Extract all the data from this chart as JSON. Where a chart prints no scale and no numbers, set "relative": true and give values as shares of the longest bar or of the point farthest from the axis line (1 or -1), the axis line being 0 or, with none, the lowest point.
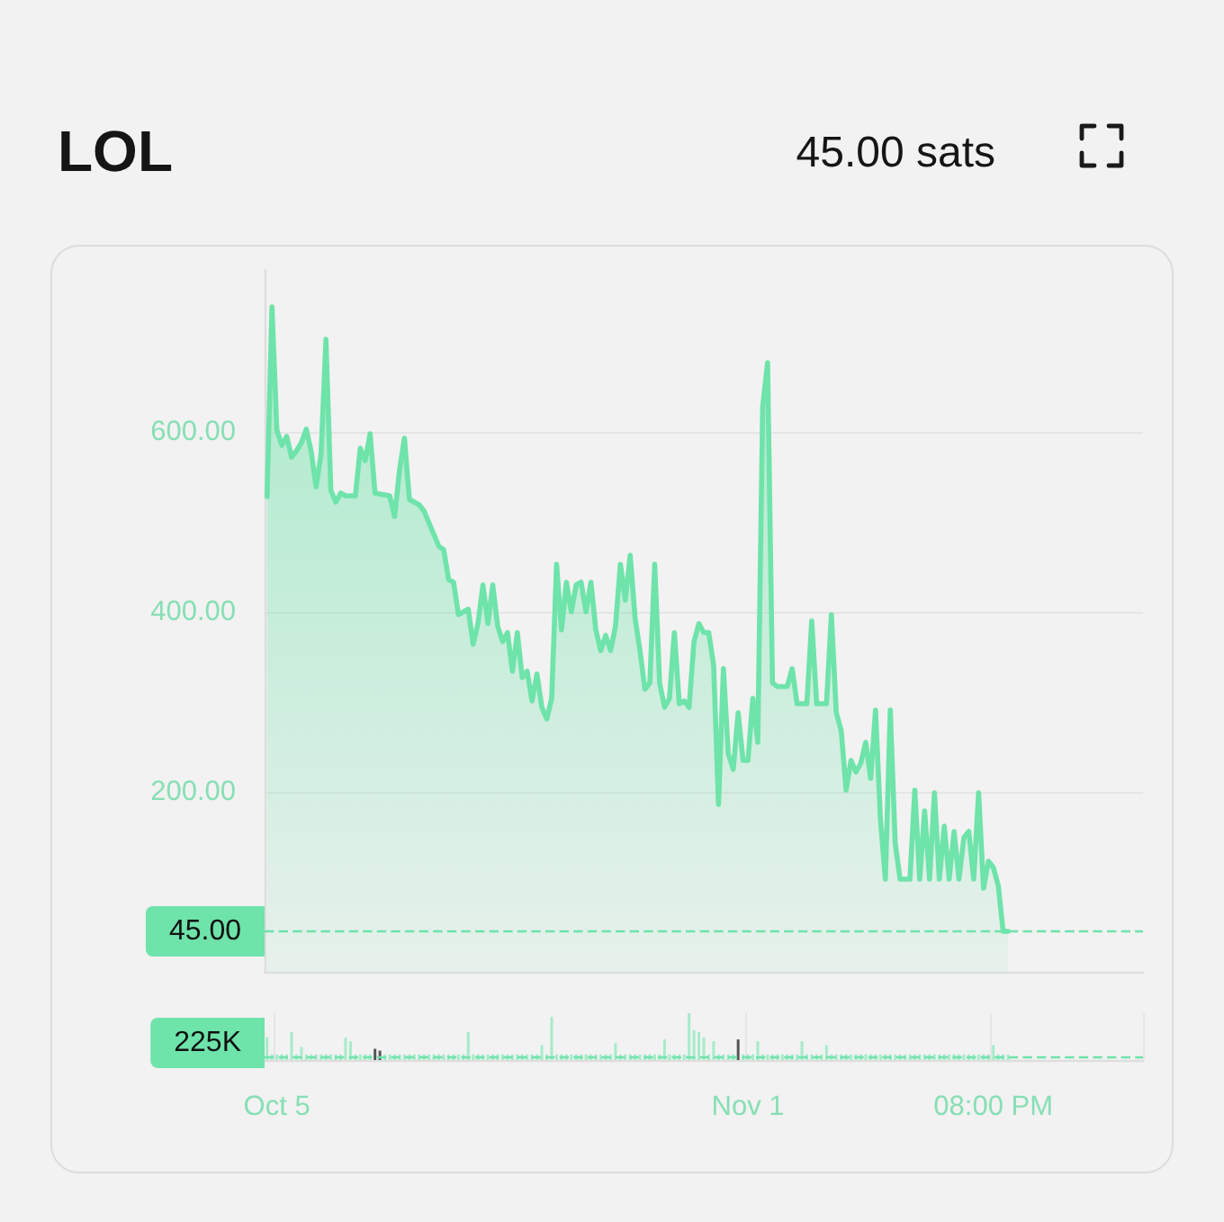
{
  "chart_data": [
    {
      "type": "area",
      "title": "LOL",
      "subtitle": "45.00 sats",
      "color": "#6ee3aa",
      "categories": [
        null,
        null,
        null,
        null,
        null,
        null,
        null,
        null,
        null,
        null,
        null,
        null,
        null,
        null,
        null,
        null,
        null,
        null,
        null,
        null,
        null,
        null,
        null,
        null,
        null,
        null,
        null,
        null,
        null,
        null,
        null,
        null,
        null,
        null,
        null,
        null,
        null,
        null,
        null,
        null,
        null,
        null,
        null,
        null,
        null,
        null,
        null,
        null,
        null,
        null,
        null,
        null,
        null,
        null,
        null,
        null,
        null,
        null,
        null,
        null,
        null,
        null,
        null,
        null,
        null,
        null,
        null,
        null,
        null,
        null,
        null,
        null,
        null,
        null,
        null,
        null,
        null,
        null,
        null,
        null,
        null,
        null,
        null,
        null,
        null,
        null,
        null,
        null,
        null,
        null,
        null,
        null,
        null,
        null,
        null,
        null,
        null,
        null,
        null,
        null,
        null,
        null,
        null,
        null,
        null,
        null,
        null,
        null,
        null,
        null,
        null,
        null,
        null,
        null,
        null,
        null,
        null,
        null,
        null,
        null,
        null,
        null,
        null,
        null,
        null,
        null,
        null,
        null,
        null,
        null,
        null,
        null,
        null,
        null,
        null,
        null,
        null,
        null,
        null,
        null,
        null,
        null,
        null,
        null,
        null,
        null,
        null,
        null,
        null,
        null,
        null,
        null
      ],
      "values": [
        528,
        739,
        602,
        585,
        595,
        572,
        579,
        588,
        603,
        578,
        539,
        575,
        703,
        535,
        522,
        532,
        529,
        529,
        529,
        582,
        568,
        598,
        532,
        531,
        530,
        529,
        506,
        558,
        593,
        525,
        522,
        519,
        512,
        499,
        486,
        473,
        469,
        436,
        433,
        397,
        400,
        403,
        364,
        388,
        430,
        387,
        430,
        384,
        367,
        377,
        334,
        377,
        327,
        334,
        301,
        331,
        294,
        281,
        304,
        453,
        380,
        433,
        400,
        430,
        433,
        400,
        433,
        380,
        357,
        374,
        357,
        384,
        453,
        413,
        463,
        393,
        357,
        314,
        321,
        453,
        321,
        294,
        304,
        377,
        298,
        301,
        294,
        367,
        387,
        377,
        377,
        341,
        186,
        337,
        242,
        225,
        288,
        235,
        235,
        304,
        255,
        628,
        677,
        321,
        317,
        317,
        317,
        337,
        298,
        298,
        298,
        390,
        298,
        298,
        298,
        397,
        288,
        268,
        202,
        235,
        222,
        232,
        255,
        215,
        291,
        169,
        103,
        291,
        143,
        103,
        103,
        103,
        202,
        103,
        179,
        103,
        199,
        103,
        162,
        103,
        156,
        103,
        149,
        156,
        103,
        199,
        93,
        123,
        116,
        96,
        45,
        45
      ],
      "ylim": [
        0,
        780
      ],
      "yticks": [
        {
          "value": 200,
          "label": "200.00"
        },
        {
          "value": 400,
          "label": "400.00"
        },
        {
          "value": 600,
          "label": "600.00"
        }
      ],
      "tick_labels": "y",
      "grid": "y",
      "ref_lines": [
        {
          "axis": "y",
          "value": 45,
          "label": "45.00",
          "color": "#6ee3aa",
          "line_style": "dashed"
        }
      ]
    },
    {
      "type": "bar",
      "relative": true,
      "color": "#a6ebc9",
      "categories": [
        null,
        null,
        "Oct 5",
        null,
        null,
        null,
        null,
        null,
        null,
        null,
        null,
        null,
        null,
        null,
        null,
        null,
        null,
        null,
        null,
        null,
        null,
        null,
        null,
        null,
        null,
        null,
        null,
        null,
        null,
        null,
        null,
        null,
        null,
        null,
        null,
        null,
        null,
        null,
        null,
        null,
        null,
        null,
        null,
        null,
        null,
        null,
        null,
        null,
        null,
        null,
        null,
        null,
        null,
        null,
        null,
        null,
        null,
        null,
        null,
        null,
        null,
        null,
        null,
        null,
        null,
        null,
        null,
        null,
        null,
        null,
        null,
        null,
        null,
        null,
        null,
        null,
        null,
        null,
        null,
        null,
        null,
        null,
        null,
        null,
        null,
        null,
        null,
        null,
        null,
        null,
        null,
        null,
        null,
        null,
        null,
        null,
        null,
        null,
        "Nov 1",
        null,
        null,
        null,
        null,
        null,
        null,
        null,
        null,
        null,
        null,
        null,
        null,
        null,
        null,
        null,
        null,
        null,
        null,
        null,
        null,
        null,
        null,
        null,
        null,
        null,
        null,
        null,
        null,
        null,
        null,
        null,
        null,
        null,
        null,
        null,
        null,
        null,
        null,
        null,
        null,
        null,
        null,
        null,
        null,
        null,
        null,
        null,
        null,
        null,
        "08:00 PM",
        null,
        null,
        null
      ],
      "values": [
        0.49,
        0.12,
        0.12,
        0.12,
        0.12,
        0.6,
        0.12,
        0.28,
        0.12,
        0.12,
        0.12,
        0.12,
        0.12,
        0.12,
        0.12,
        0.12,
        0.48,
        0.4,
        0.12,
        0.12,
        0.12,
        0.12,
        0.24,
        0.2,
        0.12,
        0.12,
        0.12,
        0.12,
        0.12,
        0.12,
        0.12,
        0.12,
        0.12,
        0.12,
        0.12,
        0.12,
        0.12,
        0.12,
        0.12,
        0.12,
        0.12,
        0.6,
        0.12,
        0.12,
        0.12,
        0.12,
        0.12,
        0.12,
        0.12,
        0.12,
        0.12,
        0.12,
        0.12,
        0.12,
        0.12,
        0.12,
        0.32,
        0.12,
        0.92,
        0.12,
        0.12,
        0.12,
        0.12,
        0.12,
        0.12,
        0.12,
        0.12,
        0.12,
        0.12,
        0.12,
        0.12,
        0.36,
        0.12,
        0.12,
        0.12,
        0.12,
        0.12,
        0.12,
        0.12,
        0.12,
        0.12,
        0.44,
        0.12,
        0.12,
        0.12,
        0.12,
        1,
        0.64,
        0.6,
        0.48,
        0.12,
        0.4,
        0.12,
        0.12,
        0.12,
        0.12,
        0.44,
        0.12,
        0.12,
        0.12,
        0.4,
        0.12,
        0.12,
        0.12,
        0.12,
        0.12,
        0.12,
        0.12,
        0.12,
        0.4,
        0.12,
        0.12,
        0.12,
        0.12,
        0.32,
        0.12,
        0.12,
        0.12,
        0.12,
        0.12,
        0.12,
        0.12,
        0.12,
        0.12,
        0.12,
        0.12,
        0.12,
        0.12,
        0.12,
        0.12,
        0.12,
        0.12,
        0.12,
        0.12,
        0.12,
        0.12,
        0.12,
        0.12,
        0.12,
        0.12,
        0.12,
        0.12,
        0.12,
        0.12,
        0.12,
        0.12,
        0.12,
        0.12,
        0.32,
        0.12,
        0.12,
        0.12
      ],
      "colors": [
        "#a6ebc9",
        "#a6ebc9",
        "#a6ebc9",
        "#a6ebc9",
        "#a6ebc9",
        "#a6ebc9",
        "#a6ebc9",
        "#a6ebc9",
        "#a6ebc9",
        "#a6ebc9",
        "#a6ebc9",
        "#a6ebc9",
        "#a6ebc9",
        "#a6ebc9",
        "#a6ebc9",
        "#a6ebc9",
        "#a6ebc9",
        "#a6ebc9",
        "#a6ebc9",
        "#a6ebc9",
        "#a6ebc9",
        "#a6ebc9",
        "#555555",
        "#555555",
        "#a6ebc9",
        "#a6ebc9",
        "#a6ebc9",
        "#a6ebc9",
        "#a6ebc9",
        "#a6ebc9",
        "#a6ebc9",
        "#a6ebc9",
        "#a6ebc9",
        "#a6ebc9",
        "#a6ebc9",
        "#a6ebc9",
        "#a6ebc9",
        "#a6ebc9",
        "#a6ebc9",
        "#a6ebc9",
        "#a6ebc9",
        "#a6ebc9",
        "#a6ebc9",
        "#a6ebc9",
        "#a6ebc9",
        "#a6ebc9",
        "#a6ebc9",
        "#a6ebc9",
        "#a6ebc9",
        "#a6ebc9",
        "#a6ebc9",
        "#a6ebc9",
        "#a6ebc9",
        "#a6ebc9",
        "#a6ebc9",
        "#a6ebc9",
        "#a6ebc9",
        "#a6ebc9",
        "#a6ebc9",
        "#a6ebc9",
        "#a6ebc9",
        "#a6ebc9",
        "#a6ebc9",
        "#a6ebc9",
        "#a6ebc9",
        "#a6ebc9",
        "#a6ebc9",
        "#a6ebc9",
        "#a6ebc9",
        "#a6ebc9",
        "#a6ebc9",
        "#a6ebc9",
        "#a6ebc9",
        "#a6ebc9",
        "#a6ebc9",
        "#a6ebc9",
        "#a6ebc9",
        "#a6ebc9",
        "#a6ebc9",
        "#a6ebc9",
        "#a6ebc9",
        "#a6ebc9",
        "#a6ebc9",
        "#a6ebc9",
        "#a6ebc9",
        "#a6ebc9",
        "#a6ebc9",
        "#a6ebc9",
        "#a6ebc9",
        "#a6ebc9",
        "#a6ebc9",
        "#a6ebc9",
        "#a6ebc9",
        "#a6ebc9",
        "#a6ebc9",
        "#a6ebc9",
        "#555555",
        "#a6ebc9",
        "#a6ebc9",
        "#a6ebc9",
        "#a6ebc9",
        "#a6ebc9",
        "#a6ebc9",
        "#a6ebc9",
        "#a6ebc9",
        "#a6ebc9",
        "#a6ebc9",
        "#a6ebc9",
        "#a6ebc9",
        "#a6ebc9",
        "#a6ebc9",
        "#a6ebc9",
        "#a6ebc9",
        "#a6ebc9",
        "#a6ebc9",
        "#a6ebc9",
        "#a6ebc9",
        "#a6ebc9",
        "#a6ebc9",
        "#a6ebc9",
        "#a6ebc9",
        "#a6ebc9",
        "#a6ebc9",
        "#a6ebc9",
        "#a6ebc9",
        "#a6ebc9",
        "#a6ebc9",
        "#a6ebc9",
        "#a6ebc9",
        "#a6ebc9",
        "#a6ebc9",
        "#a6ebc9",
        "#a6ebc9",
        "#a6ebc9",
        "#a6ebc9",
        "#a6ebc9",
        "#a6ebc9",
        "#a6ebc9",
        "#a6ebc9",
        "#a6ebc9",
        "#a6ebc9",
        "#a6ebc9",
        "#a6ebc9",
        "#a6ebc9",
        "#a6ebc9",
        "#a6ebc9",
        "#a6ebc9",
        "#a6ebc9",
        "#a6ebc9",
        "#a6ebc9",
        "#a6ebc9",
        "#a6ebc9"
      ],
      "grid": "x",
      "ref_lines": [
        {
          "axis": "y",
          "value": 0.06,
          "label": "225K",
          "color": "#6ee3aa",
          "line_style": "dashed"
        }
      ]
    }
  ]
}
